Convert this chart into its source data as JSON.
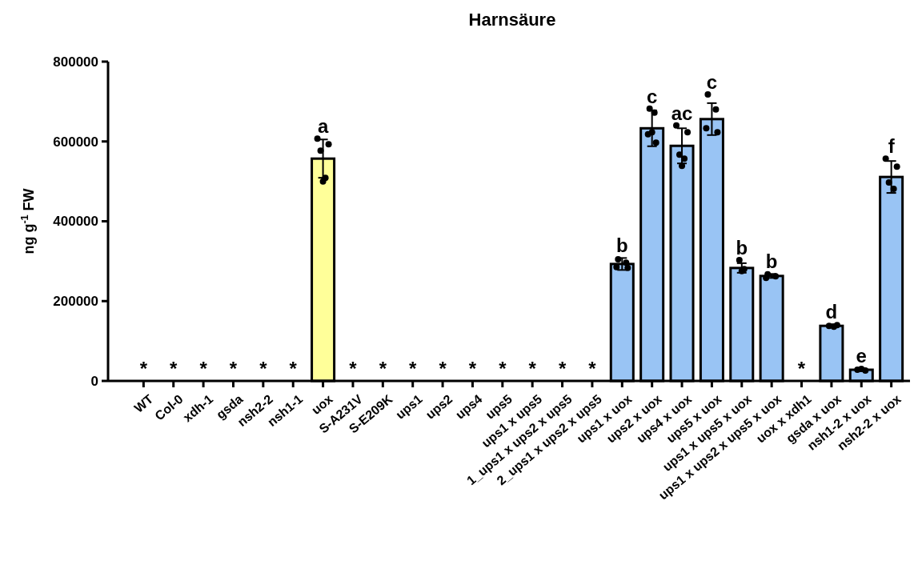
{
  "chart_data": {
    "type": "bar",
    "title": "Harnsäure",
    "ylabel": "ng g$^{-1}$ FW",
    "categories": [
      "WT",
      "Col-0",
      "xdh-1",
      "gsda",
      "nsh2-2",
      "nsh1-1",
      "uox",
      "S-A231V",
      "S-E209K",
      "ups1",
      "ups2",
      "ups4",
      "ups5",
      "ups1 x ups5",
      "1_ups1 x ups2 x ups5",
      "2_ups1 x ups2 x ups5",
      "ups1 x uox",
      "ups2 x uox",
      "ups4 x uox",
      "ups5 x uox",
      "ups1 x ups5 x uox",
      "ups1 x ups2 x ups5 x uox",
      "uox x xdh1",
      "gsda x uox",
      "nsh1-2 x uox",
      "nsh2-2 x uox"
    ],
    "series": [
      {
        "values": [
          0,
          0,
          0,
          0,
          0,
          0,
          557000,
          0,
          0,
          0,
          0,
          0,
          0,
          0,
          0,
          0,
          293000,
          633000,
          589000,
          656000,
          283000,
          263000,
          0,
          138000,
          28000,
          511000
        ],
        "colors": [
          "#99c4f4",
          "#99c4f4",
          "#99c4f4",
          "#99c4f4",
          "#99c4f4",
          "#99c4f4",
          "#ffff99",
          "#99c4f4",
          "#99c4f4",
          "#99c4f4",
          "#99c4f4",
          "#99c4f4",
          "#99c4f4",
          "#99c4f4",
          "#99c4f4",
          "#99c4f4",
          "#99c4f4",
          "#99c4f4",
          "#99c4f4",
          "#99c4f4",
          "#99c4f4",
          "#99c4f4",
          "#99c4f4",
          "#99c4f4",
          "#99c4f4",
          "#99c4f4"
        ],
        "errors": [
          null,
          null,
          null,
          null,
          null,
          null,
          48000,
          null,
          null,
          null,
          null,
          null,
          null,
          null,
          null,
          null,
          15000,
          45000,
          44000,
          40000,
          12000,
          5000,
          null,
          4000,
          4000,
          40000
        ],
        "value_labels": [
          "*",
          "*",
          "*",
          "*",
          "*",
          "*",
          "a",
          "*",
          "*",
          "*",
          "*",
          "*",
          "*",
          "*",
          "*",
          "*",
          "b",
          "c",
          "ac",
          "c",
          "b",
          "b",
          "*",
          "d",
          "e",
          "f"
        ]
      },
      {
        "type": "scatter",
        "color": "#000000",
        "x": [
          "uox",
          "uox",
          "uox",
          "uox",
          "uox",
          "ups1 x uox",
          "ups1 x uox",
          "ups1 x uox",
          "ups1 x uox",
          "ups2 x uox",
          "ups2 x uox",
          "ups2 x uox",
          "ups2 x uox",
          "ups2 x uox",
          "ups4 x uox",
          "ups4 x uox",
          "ups4 x uox",
          "ups4 x uox",
          "ups4 x uox",
          "ups5 x uox",
          "ups5 x uox",
          "ups5 x uox",
          "ups5 x uox",
          "ups1 x ups5 x uox",
          "ups1 x ups5 x uox",
          "ups1 x ups5 x uox",
          "ups1 x ups2 x ups5 x uox",
          "ups1 x ups2 x ups5 x uox",
          "ups1 x ups2 x ups5 x uox",
          "gsda x uox",
          "gsda x uox",
          "gsda x uox",
          "nsh1-2 x uox",
          "nsh1-2 x uox",
          "nsh1-2 x uox",
          "nsh2-2 x uox",
          "nsh2-2 x uox",
          "nsh2-2 x uox",
          "nsh2-2 x uox"
        ],
        "values": [
          607000,
          593000,
          577000,
          509000,
          500000,
          305000,
          296000,
          285000,
          283000,
          682000,
          672000,
          623000,
          618000,
          597000,
          640000,
          623000,
          567000,
          557000,
          539000,
          718000,
          680000,
          633000,
          623000,
          303000,
          280000,
          275000,
          267000,
          262000,
          258000,
          140000,
          138000,
          136000,
          30000,
          28000,
          26000,
          557000,
          537000,
          497000,
          481000
        ]
      }
    ],
    "ylim": [
      0,
      800000
    ],
    "yticks": [
      0,
      200000,
      400000,
      600000,
      800000
    ],
    "marker": "circle"
  }
}
